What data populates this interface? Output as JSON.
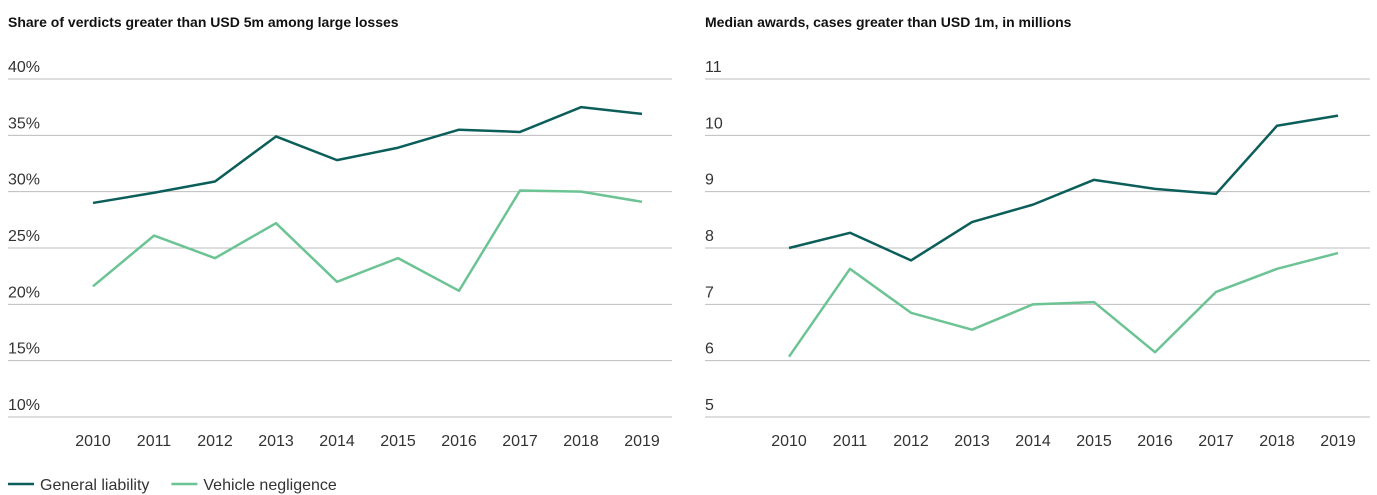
{
  "chart_data": [
    {
      "type": "line",
      "title": "Share of verdicts greater than USD 5m among large losses",
      "categories": [
        "2010",
        "2011",
        "2012",
        "2013",
        "2014",
        "2015",
        "2016",
        "2017",
        "2018",
        "2019"
      ],
      "series": [
        {
          "name": "General liability",
          "color": "#0b5e5a",
          "values": [
            29.0,
            29.9,
            30.9,
            34.9,
            32.8,
            33.9,
            35.5,
            35.3,
            37.5,
            36.9
          ]
        },
        {
          "name": "Vehicle negligence",
          "color": "#6cc393",
          "values": [
            21.6,
            26.1,
            24.1,
            27.2,
            22.0,
            24.1,
            21.2,
            30.1,
            30.0,
            29.1
          ]
        }
      ],
      "ylim": [
        10,
        40
      ],
      "yticks": [
        {
          "value": 10,
          "label": "10%"
        },
        {
          "value": 15,
          "label": "15%"
        },
        {
          "value": 20,
          "label": "20%"
        },
        {
          "value": 25,
          "label": "25%"
        },
        {
          "value": 30,
          "label": "30%"
        },
        {
          "value": 35,
          "label": "35%"
        },
        {
          "value": 40,
          "label": "40%"
        }
      ],
      "grid": true
    },
    {
      "type": "line",
      "title": "Median awards, cases greater than USD 1m, in millions",
      "categories": [
        "2010",
        "2011",
        "2012",
        "2013",
        "2014",
        "2015",
        "2016",
        "2017",
        "2018",
        "2019"
      ],
      "series": [
        {
          "name": "General liability",
          "color": "#0b5e5a",
          "values": [
            8.0,
            8.27,
            7.78,
            8.46,
            8.77,
            9.21,
            9.05,
            8.96,
            10.17,
            10.35
          ]
        },
        {
          "name": "Vehicle negligence",
          "color": "#6cc393",
          "values": [
            6.07,
            7.63,
            6.85,
            6.55,
            7.0,
            7.04,
            6.15,
            7.22,
            7.63,
            7.91
          ]
        }
      ],
      "ylim": [
        5,
        11
      ],
      "yticks": [
        5,
        6,
        7,
        8,
        9,
        10,
        11
      ],
      "grid": true
    }
  ]
}
